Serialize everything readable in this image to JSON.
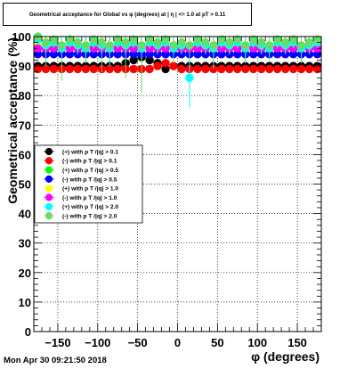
{
  "title": "Geometrical acceptance for Global vs φ (degrees) at | η | <= 1.0 at pT > 0.11",
  "footer": "Mon Apr 30 09:21:50 2018",
  "chart_data": {
    "type": "scatter",
    "title": "Geometrical acceptance for Global vs φ (degrees) at | η | <= 1.0 at pT > 0.11",
    "xlabel": "φ (degrees)",
    "ylabel": "Geometrical acceptance (%)",
    "xlim": [
      -180,
      180
    ],
    "ylim": [
      0,
      100
    ],
    "xticks": [
      -150,
      -100,
      -50,
      0,
      50,
      100,
      150
    ],
    "yticks": [
      0,
      10,
      20,
      30,
      40,
      50,
      60,
      70,
      80,
      90,
      100
    ],
    "grid": true,
    "legend_position": "center-left",
    "series": [
      {
        "name": "(+) with p T /|q| > 0.1",
        "color": "#000000",
        "marker": "circle",
        "x": [
          -175,
          -165,
          -155,
          -145,
          -135,
          -125,
          -115,
          -105,
          -95,
          -85,
          -75,
          -65,
          -55,
          -45,
          -35,
          -25,
          -15,
          -5,
          5,
          15,
          25,
          35,
          45,
          55,
          65,
          75,
          85,
          95,
          105,
          115,
          125,
          135,
          145,
          155,
          165,
          175
        ],
        "y": [
          90,
          90,
          90,
          90,
          90,
          90,
          90,
          90,
          90,
          90,
          90,
          91,
          92,
          93,
          92,
          91,
          89,
          90,
          90,
          90,
          90,
          90,
          90,
          90,
          90,
          90,
          90,
          90,
          90,
          90,
          90,
          90,
          90,
          90,
          90,
          90
        ]
      },
      {
        "name": "(-) with p T /|q| > 0.1",
        "color": "#ff0000",
        "marker": "circle",
        "x": [
          -175,
          -165,
          -155,
          -145,
          -135,
          -125,
          -115,
          -105,
          -95,
          -85,
          -75,
          -65,
          -55,
          -45,
          -35,
          -25,
          -15,
          -5,
          5,
          15,
          25,
          35,
          45,
          55,
          65,
          75,
          85,
          95,
          105,
          115,
          125,
          135,
          145,
          155,
          165,
          175
        ],
        "y": [
          89,
          89,
          89,
          89,
          89,
          89,
          89,
          89,
          89,
          89,
          89,
          89,
          89,
          89,
          89,
          90,
          91,
          90,
          89,
          89,
          89,
          89,
          89,
          89,
          89,
          89,
          89,
          89,
          89,
          89,
          89,
          89,
          89,
          89,
          89,
          89
        ]
      },
      {
        "name": "(+) with p T /|q| > 0.5",
        "color": "#00ff00",
        "marker": "circle",
        "x": [
          -175,
          -165,
          -155,
          -145,
          -135,
          -125,
          -115,
          -105,
          -95,
          -85,
          -75,
          -65,
          -55,
          -45,
          -35,
          -25,
          -15,
          -5,
          5,
          15,
          25,
          35,
          45,
          55,
          65,
          75,
          85,
          95,
          105,
          115,
          125,
          135,
          145,
          155,
          165,
          175
        ],
        "y": [
          96,
          96,
          96,
          96,
          96,
          96,
          96,
          96,
          96,
          96,
          96,
          96,
          96,
          96,
          96,
          96,
          96,
          96,
          96,
          96,
          96,
          96,
          96,
          96,
          96,
          96,
          96,
          96,
          96,
          96,
          96,
          96,
          96,
          96,
          96,
          96
        ]
      },
      {
        "name": "(-) with p T /|q| > 0.5",
        "color": "#0000ff",
        "marker": "circle",
        "x": [
          -175,
          -165,
          -155,
          -145,
          -135,
          -125,
          -115,
          -105,
          -95,
          -85,
          -75,
          -65,
          -55,
          -45,
          -35,
          -25,
          -15,
          -5,
          5,
          15,
          25,
          35,
          45,
          55,
          65,
          75,
          85,
          95,
          105,
          115,
          125,
          135,
          145,
          155,
          165,
          175
        ],
        "y": [
          94,
          94,
          94,
          94,
          94,
          94,
          94,
          94,
          94,
          94,
          94,
          94,
          94,
          94,
          94,
          94,
          94,
          94,
          94,
          94,
          94,
          94,
          94,
          94,
          94,
          94,
          94,
          94,
          94,
          94,
          94,
          94,
          94,
          94,
          94,
          94
        ]
      },
      {
        "name": "(+) with p T /|q| > 1.0",
        "color": "#ffff00",
        "marker": "circle",
        "x": [
          -175,
          -165,
          -155,
          -145,
          -135,
          -125,
          -115,
          -105,
          -95,
          -85,
          -75,
          -65,
          -55,
          -45,
          -35,
          -25,
          -15,
          -5,
          5,
          15,
          25,
          35,
          45,
          55,
          65,
          75,
          85,
          95,
          105,
          115,
          125,
          135,
          145,
          155,
          165,
          175
        ],
        "y": [
          97,
          97,
          97,
          97,
          97,
          97,
          97,
          97,
          97,
          97,
          97,
          97,
          97,
          97,
          97,
          97,
          97,
          97,
          97,
          97,
          97,
          97,
          97,
          97,
          97,
          97,
          97,
          97,
          97,
          97,
          97,
          97,
          97,
          97,
          97,
          97
        ]
      },
      {
        "name": "(-) with p T /|q| > 1.0",
        "color": "#ff00ff",
        "marker": "circle",
        "x": [
          -175,
          -165,
          -155,
          -145,
          -135,
          -125,
          -115,
          -105,
          -95,
          -85,
          -75,
          -65,
          -55,
          -45,
          -35,
          -25,
          -15,
          -5,
          5,
          15,
          25,
          35,
          45,
          55,
          65,
          75,
          85,
          95,
          105,
          115,
          125,
          135,
          145,
          155,
          165,
          175
        ],
        "y": [
          96,
          96,
          96,
          96,
          96,
          96,
          96,
          96,
          96,
          96,
          96,
          96,
          96,
          96,
          96,
          96,
          96,
          96,
          96,
          96,
          96,
          96,
          96,
          96,
          96,
          96,
          96,
          96,
          96,
          96,
          96,
          96,
          96,
          96,
          96,
          96
        ]
      },
      {
        "name": "(+) with p T /|q| > 2.0",
        "color": "#00ffff",
        "marker": "circle",
        "x": [
          -175,
          -165,
          -155,
          -145,
          -135,
          -125,
          -115,
          -105,
          -95,
          -85,
          -75,
          -65,
          -55,
          -45,
          -35,
          -25,
          -15,
          -5,
          5,
          15,
          25,
          35,
          45,
          55,
          65,
          75,
          85,
          95,
          105,
          115,
          125,
          135,
          145,
          155,
          165,
          175
        ],
        "y": [
          99,
          97,
          98,
          96,
          98,
          97,
          96,
          98,
          97,
          96,
          98,
          97,
          98,
          96,
          98,
          97,
          98,
          96,
          97,
          86,
          98,
          97,
          96,
          98,
          97,
          98,
          96,
          98,
          97,
          96,
          98,
          97,
          98,
          96,
          97,
          98
        ],
        "yerr": [
          2,
          3,
          2,
          4,
          2,
          3,
          5,
          2,
          3,
          6,
          2,
          3,
          2,
          5,
          2,
          3,
          2,
          4,
          3,
          10,
          2,
          3,
          5,
          2,
          3,
          2,
          5,
          2,
          3,
          4,
          2,
          3,
          2,
          4,
          3,
          2
        ]
      },
      {
        "name": "(-) with p T /|q| > 2.0",
        "color": "#66dd66",
        "marker": "circle",
        "x": [
          -175,
          -165,
          -155,
          -145,
          -135,
          -125,
          -115,
          -105,
          -95,
          -85,
          -75,
          -65,
          -55,
          -45,
          -35,
          -25,
          -15,
          -5,
          5,
          15,
          25,
          35,
          45,
          55,
          65,
          75,
          85,
          95,
          105,
          115,
          125,
          135,
          145,
          155,
          165,
          175
        ],
        "y": [
          100,
          98,
          99,
          97,
          99,
          98,
          97,
          99,
          98,
          97,
          99,
          98,
          99,
          97,
          99,
          98,
          99,
          97,
          98,
          97,
          99,
          98,
          97,
          99,
          98,
          99,
          97,
          99,
          98,
          97,
          99,
          98,
          99,
          97,
          98,
          99
        ],
        "yerr": [
          2,
          8,
          3,
          12,
          3,
          4,
          6,
          3,
          10,
          5,
          3,
          12,
          3,
          16,
          3,
          4,
          3,
          6,
          4,
          5,
          3,
          4,
          8,
          3,
          4,
          3,
          6,
          3,
          4,
          5,
          3,
          4,
          3,
          6,
          4,
          3
        ]
      }
    ]
  }
}
